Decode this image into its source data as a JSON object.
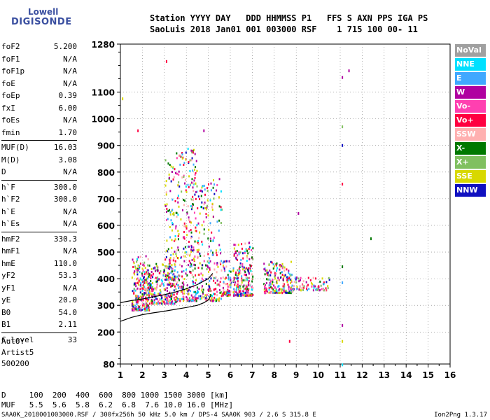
{
  "logo": {
    "line1": "Lowell",
    "line2": "DIGISONDE"
  },
  "header": {
    "line1": "Station YYYY DAY   DDD HHMMSS P1   FFS S AXN PPS IGA PS",
    "line2": "SaoLuis 2018 Jan01 001 003000 RSF    1 715 100 00- 11"
  },
  "params": [
    {
      "label": "foF2",
      "value": "5.200"
    },
    {
      "label": "foF1",
      "value": "N/A"
    },
    {
      "label": "foF1p",
      "value": "N/A"
    },
    {
      "label": "foE",
      "value": "N/A"
    },
    {
      "label": "foEp",
      "value": "0.39"
    },
    {
      "label": "fxI",
      "value": "6.00"
    },
    {
      "label": "foEs",
      "value": "N/A"
    },
    {
      "label": "fmin",
      "value": "1.70"
    },
    {
      "label": "MUF(D)",
      "value": "16.03"
    },
    {
      "label": "M(D)",
      "value": "3.08"
    },
    {
      "label": "D",
      "value": "N/A"
    },
    {
      "label": "h`F",
      "value": "300.0"
    },
    {
      "label": "h`F2",
      "value": "300.0"
    },
    {
      "label": "h`E",
      "value": "N/A"
    },
    {
      "label": "h`Es",
      "value": "N/A"
    },
    {
      "label": "hmF2",
      "value": "330.3"
    },
    {
      "label": "hmF1",
      "value": "N/A"
    },
    {
      "label": "hmE",
      "value": "110.0"
    },
    {
      "label": "yF2",
      "value": "53.3"
    },
    {
      "label": "yF1",
      "value": "N/A"
    },
    {
      "label": "yE",
      "value": "20.0"
    },
    {
      "label": "B0",
      "value": "54.0"
    },
    {
      "label": "B1",
      "value": "2.11"
    },
    {
      "label": "C-level",
      "value": "33"
    }
  ],
  "auto": {
    "line1": "Auto:",
    "line2": "Artist5",
    "line3": "500200"
  },
  "legend": [
    {
      "label": "NoVal",
      "color": "#a0a0a0"
    },
    {
      "label": "NNE",
      "color": "#00e0ff"
    },
    {
      "label": "E",
      "color": "#40a8ff"
    },
    {
      "label": "W",
      "color": "#b000a0"
    },
    {
      "label": "Vo-",
      "color": "#ff40b0"
    },
    {
      "label": "Vo+",
      "color": "#ff0040"
    },
    {
      "label": "SSW",
      "color": "#ffb0b0"
    },
    {
      "label": "X-",
      "color": "#007800"
    },
    {
      "label": "X+",
      "color": "#80c060"
    },
    {
      "label": "SSE",
      "color": "#d8d800"
    },
    {
      "label": "NNW",
      "color": "#1010c0"
    }
  ],
  "footer": {
    "line1": "D     100  200  400  600  800 1000 1500 3000 [km]",
    "line2": "MUF   5.5  5.6  5.8  6.2  6.8  7.6 10.0 16.0 [MHz]"
  },
  "status": "SAA0K_2018001003000.RSF / 300fx256h 50 kHz 5.0 km / DPS-4 SAA0K 903 / 2.6 S 315.8 E",
  "version": "Ion2Png 1.3.17",
  "chart_data": {
    "type": "scatter",
    "xlim": [
      1,
      16
    ],
    "ylim": [
      80,
      1280
    ],
    "xticks": [
      "1",
      "2",
      "3",
      "4",
      "5",
      "6",
      "7",
      "8",
      "9",
      "10",
      "11",
      "12",
      "13",
      "14",
      "15",
      "16"
    ],
    "yticks": [
      "80",
      "200",
      "300",
      "400",
      "500",
      "600",
      "700",
      "800",
      "900",
      "1000",
      "1100",
      "1280"
    ],
    "grid": true,
    "curves": [
      {
        "name": "",
        "x": [
          1.0,
          1.5,
          2.0,
          2.5,
          3.0,
          3.5,
          4.0,
          4.5,
          4.8,
          5.0,
          5.1
        ],
        "y": [
          240,
          255,
          265,
          272,
          278,
          285,
          292,
          300,
          310,
          320,
          335
        ]
      },
      {
        "name": "",
        "x": [
          1.0,
          1.5,
          2.0,
          2.5,
          3.0,
          3.5,
          4.0,
          4.5,
          5.0,
          5.2
        ],
        "y": [
          310,
          318,
          324,
          332,
          340,
          350,
          362,
          378,
          400,
          420
        ]
      }
    ],
    "clusters": [
      {
        "x0": 1.5,
        "x1": 2.3,
        "y0": 285,
        "y1": 490,
        "n": 260
      },
      {
        "x0": 2.3,
        "x1": 3.5,
        "y0": 310,
        "y1": 460,
        "n": 220
      },
      {
        "x0": 3.0,
        "x1": 3.5,
        "y0": 400,
        "y1": 860,
        "n": 110
      },
      {
        "x0": 3.5,
        "x1": 4.5,
        "y0": 320,
        "y1": 900,
        "n": 300
      },
      {
        "x0": 4.5,
        "x1": 5.6,
        "y0": 320,
        "y1": 780,
        "n": 220
      },
      {
        "x0": 5.6,
        "x1": 6.0,
        "y0": 340,
        "y1": 470,
        "n": 70
      },
      {
        "x0": 6.1,
        "x1": 7.0,
        "y0": 340,
        "y1": 540,
        "n": 230
      },
      {
        "x0": 7.5,
        "x1": 8.8,
        "y0": 350,
        "y1": 470,
        "n": 180
      },
      {
        "x0": 8.8,
        "x1": 10.5,
        "y0": 360,
        "y1": 410,
        "n": 80
      }
    ],
    "isolated_points": [
      {
        "x": 11.1,
        "y": 1160
      },
      {
        "x": 11.1,
        "y": 975
      },
      {
        "x": 11.1,
        "y": 905
      },
      {
        "x": 11.1,
        "y": 760
      },
      {
        "x": 11.1,
        "y": 450
      },
      {
        "x": 11.1,
        "y": 390
      },
      {
        "x": 11.1,
        "y": 230
      },
      {
        "x": 11.1,
        "y": 170
      },
      {
        "x": 11.1,
        "y": 82
      },
      {
        "x": 12.4,
        "y": 555
      },
      {
        "x": 11.4,
        "y": 1185
      },
      {
        "x": 3.1,
        "y": 1220
      },
      {
        "x": 4.8,
        "y": 960
      },
      {
        "x": 1.8,
        "y": 960
      },
      {
        "x": 1.1,
        "y": 1080
      },
      {
        "x": 8.7,
        "y": 170
      },
      {
        "x": 9.1,
        "y": 650
      }
    ]
  }
}
